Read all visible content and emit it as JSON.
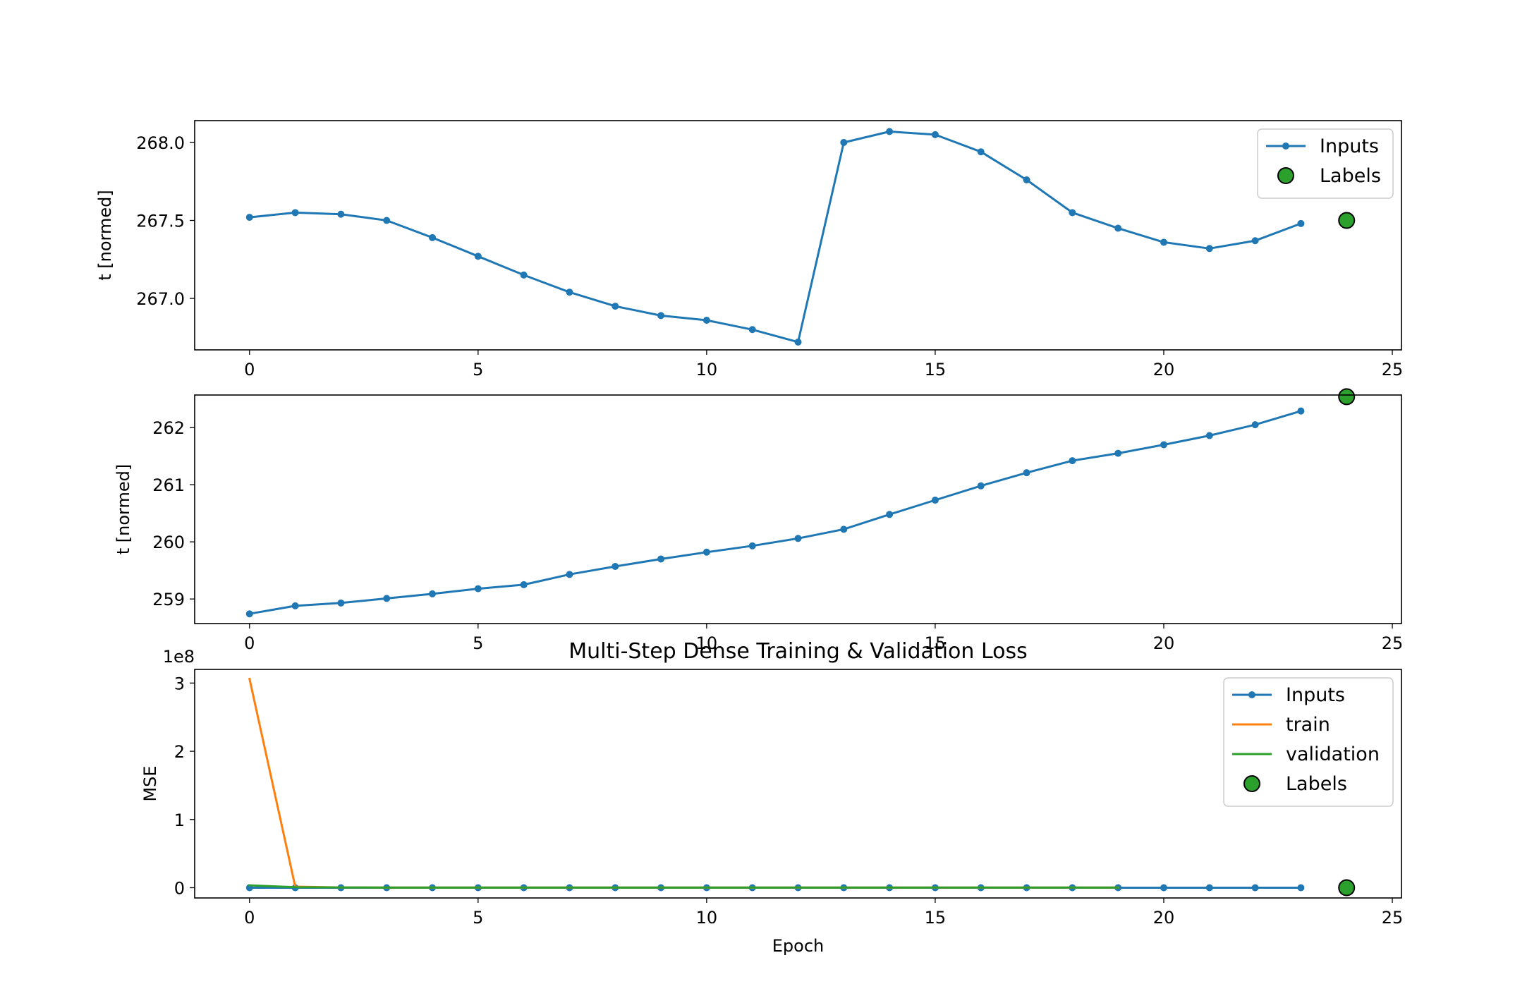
{
  "colors": {
    "inputs": "#1f77b4",
    "train": "#ff7f0e",
    "validation": "#2ca02c",
    "labels_fill": "#2ca02c",
    "labels_edge": "#000000"
  },
  "chart_data": [
    {
      "type": "line",
      "title": "",
      "xlabel": "",
      "ylabel": "t [normed]",
      "xlim": [
        -1.2,
        25.2
      ],
      "ylim": [
        266.67,
        268.14
      ],
      "xticks": [
        0,
        5,
        10,
        15,
        20,
        25
      ],
      "yticks": [
        {
          "value": 267.0,
          "label": "267.0"
        },
        {
          "value": 267.5,
          "label": "267.5"
        },
        {
          "value": 268.0,
          "label": "268.0"
        }
      ],
      "legend": {
        "placement": "upper-right",
        "entries": [
          "Inputs",
          "Labels"
        ]
      },
      "series": [
        {
          "name": "Inputs",
          "x": [
            0,
            1,
            2,
            3,
            4,
            5,
            6,
            7,
            8,
            9,
            10,
            11,
            12,
            13,
            14,
            15,
            16,
            17,
            18,
            19,
            20,
            21,
            22,
            23
          ],
          "values": [
            267.52,
            267.55,
            267.54,
            267.5,
            267.39,
            267.27,
            267.15,
            267.04,
            266.95,
            266.89,
            266.86,
            266.8,
            266.72,
            268.0,
            268.07,
            268.05,
            267.94,
            267.76,
            267.55,
            267.45,
            267.36,
            267.32,
            267.37,
            267.48
          ]
        }
      ],
      "labels_points": {
        "name": "Labels",
        "x": [
          24
        ],
        "values": [
          267.5
        ]
      }
    },
    {
      "type": "line",
      "title": "",
      "xlabel": "",
      "ylabel": "t [normed]",
      "xlim": [
        -1.2,
        25.2
      ],
      "ylim": [
        258.57,
        262.57
      ],
      "xticks": [
        0,
        5,
        10,
        15,
        20,
        25
      ],
      "yticks": [
        {
          "value": 259,
          "label": "259"
        },
        {
          "value": 260,
          "label": "260"
        },
        {
          "value": 261,
          "label": "261"
        },
        {
          "value": 262,
          "label": "262"
        }
      ],
      "series": [
        {
          "name": "",
          "x": [
            0,
            1,
            2,
            3,
            4,
            5,
            6,
            7,
            8,
            9,
            10,
            11,
            12,
            13,
            14,
            15,
            16,
            17,
            18,
            19,
            20,
            21,
            22,
            23
          ],
          "values": [
            258.74,
            258.88,
            258.93,
            259.01,
            259.09,
            259.18,
            259.25,
            259.43,
            259.57,
            259.7,
            259.82,
            259.93,
            260.06,
            260.22,
            260.48,
            260.73,
            260.98,
            261.21,
            261.42,
            261.55,
            261.7,
            261.86,
            262.05,
            262.29
          ]
        }
      ],
      "labels_points": {
        "name": "",
        "x": [
          24
        ],
        "values": [
          262.54
        ]
      }
    },
    {
      "type": "line",
      "title": "Multi-Step Dense Training & Validation Loss",
      "xlabel": "Epoch",
      "ylabel": "MSE",
      "y_offset_text": "1e8",
      "xlim": [
        -1.2,
        25.2
      ],
      "ylim": [
        -0.15,
        3.2
      ],
      "xticks": [
        0,
        5,
        10,
        15,
        20,
        25
      ],
      "yticks": [
        {
          "value": 0,
          "label": "0"
        },
        {
          "value": 1,
          "label": "1"
        },
        {
          "value": 2,
          "label": "2"
        },
        {
          "value": 3,
          "label": "3"
        }
      ],
      "legend": {
        "placement": "upper-right",
        "entries": [
          "Inputs",
          "train",
          "validation",
          "Labels"
        ]
      },
      "series": [
        {
          "name": "Inputs",
          "x": [
            0,
            1,
            2,
            3,
            4,
            5,
            6,
            7,
            8,
            9,
            10,
            11,
            12,
            13,
            14,
            15,
            16,
            17,
            18,
            19,
            20,
            21,
            22,
            23
          ],
          "values": [
            0,
            0,
            0,
            0,
            0,
            0,
            0,
            0,
            0,
            0,
            0,
            0,
            0,
            0,
            0,
            0,
            0,
            0,
            0,
            0,
            0,
            0,
            0,
            0
          ]
        },
        {
          "name": "train",
          "x": [
            0,
            1,
            2,
            3,
            4,
            5,
            6,
            7,
            8,
            9,
            10,
            11,
            12,
            13,
            14,
            15,
            16,
            17,
            18,
            19
          ],
          "values": [
            3.06,
            0.015,
            0.004,
            0.003,
            0.002,
            0.002,
            0.002,
            0.002,
            0.002,
            0.002,
            0.002,
            0.002,
            0.002,
            0.002,
            0.002,
            0.002,
            0.002,
            0.002,
            0.002,
            0.002
          ]
        },
        {
          "name": "validation",
          "x": [
            0,
            1,
            2,
            3,
            4,
            5,
            6,
            7,
            8,
            9,
            10,
            11,
            12,
            13,
            14,
            15,
            16,
            17,
            18,
            19
          ],
          "values": [
            0.035,
            0.008,
            0.004,
            0.003,
            0.002,
            0.002,
            0.002,
            0.002,
            0.002,
            0.002,
            0.002,
            0.002,
            0.002,
            0.002,
            0.002,
            0.002,
            0.002,
            0.002,
            0.002,
            0.002
          ]
        }
      ],
      "labels_points": {
        "name": "Labels",
        "x": [
          24
        ],
        "values": [
          0
        ]
      }
    }
  ]
}
